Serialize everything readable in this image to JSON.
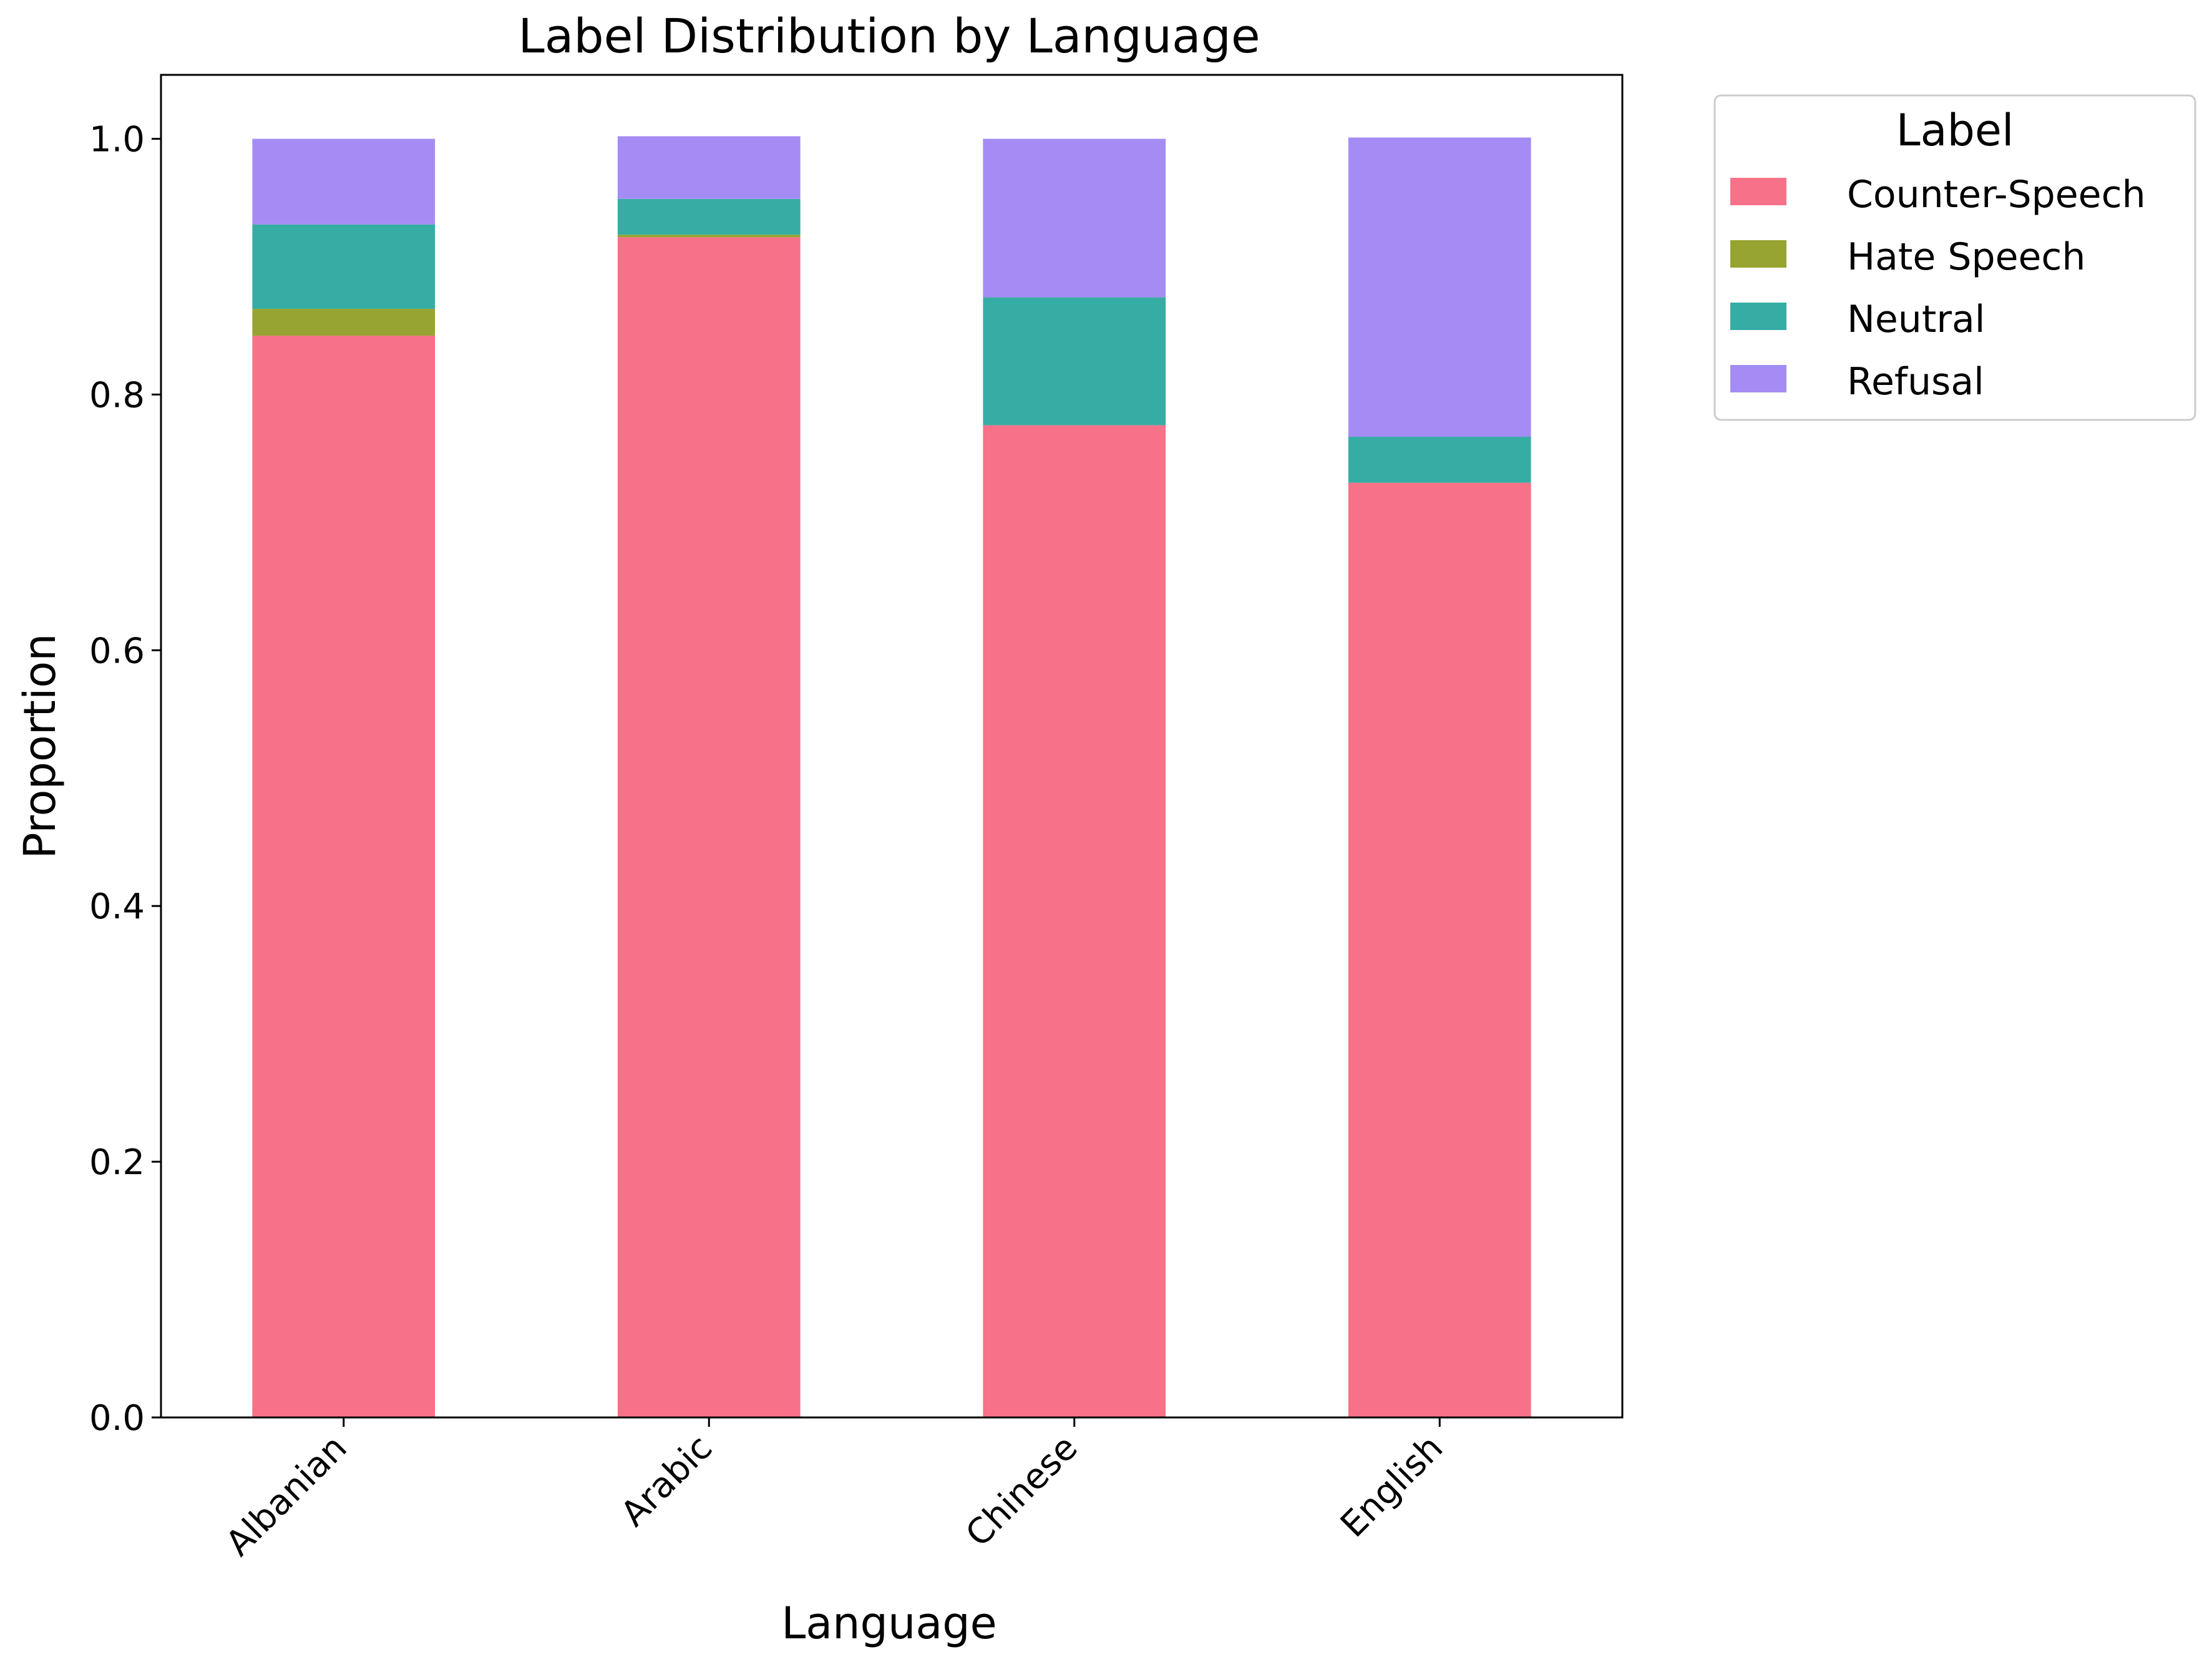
{
  "chart_data": {
    "type": "bar",
    "stacked": true,
    "title": "Label Distribution by Language",
    "xlabel": "Language",
    "ylabel": "Proportion",
    "ylim": [
      0,
      1.05
    ],
    "yticks": [
      "0.0",
      "0.2",
      "0.4",
      "0.6",
      "0.8",
      "1.0"
    ],
    "categories": [
      "Albanian",
      "Arabic",
      "Chinese",
      "English"
    ],
    "series": [
      {
        "name": "Counter-Speech",
        "color": "#f77189",
        "values": [
          0.846,
          0.923,
          0.776,
          0.731
        ]
      },
      {
        "name": "Hate Speech",
        "color": "#97a431",
        "values": [
          0.021,
          0.002,
          0.0,
          0.0
        ]
      },
      {
        "name": "Neutral",
        "color": "#36ada4",
        "values": [
          0.066,
          0.028,
          0.1,
          0.036
        ]
      },
      {
        "name": "Refusal",
        "color": "#a48cf4",
        "values": [
          0.067,
          0.049,
          0.124,
          0.234
        ]
      }
    ],
    "legend": {
      "title": "Label",
      "position": "outside-right"
    },
    "grid": false
  }
}
